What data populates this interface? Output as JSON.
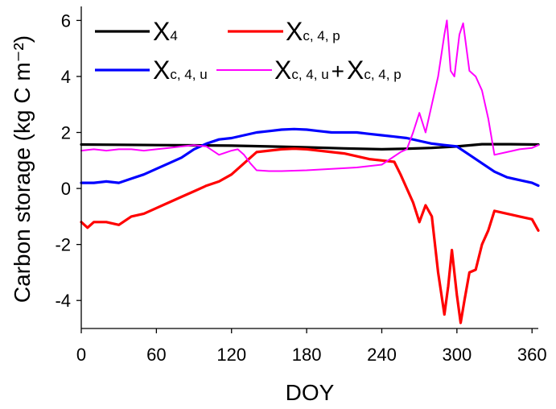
{
  "chart_data": {
    "type": "line",
    "xlabel": "DOY",
    "ylabel": "Carbon storage (kg C m⁻²)",
    "xlim": [
      0,
      365
    ],
    "ylim": [
      -5,
      6.5
    ],
    "xticks": [
      0,
      60,
      120,
      180,
      240,
      300,
      360
    ],
    "yticks": [
      -4,
      -2,
      0,
      2,
      4,
      6
    ],
    "grid": false,
    "legend_position": "top-left",
    "series": [
      {
        "name": "X4",
        "legend": {
          "main": "X",
          "sub": "4"
        },
        "color": "#000000",
        "x": [
          0,
          30,
          60,
          90,
          120,
          150,
          180,
          210,
          240,
          260,
          280,
          300,
          320,
          340,
          365
        ],
        "y": [
          1.57,
          1.56,
          1.55,
          1.54,
          1.53,
          1.5,
          1.47,
          1.43,
          1.4,
          1.42,
          1.45,
          1.5,
          1.58,
          1.58,
          1.57
        ]
      },
      {
        "name": "Xc,4,p",
        "legend": {
          "main": "X",
          "sub": "c, 4, p"
        },
        "color": "#ff0000",
        "x": [
          0,
          5,
          10,
          20,
          30,
          40,
          50,
          60,
          70,
          80,
          90,
          100,
          110,
          120,
          130,
          140,
          150,
          160,
          170,
          180,
          190,
          200,
          210,
          220,
          230,
          240,
          250,
          255,
          260,
          265,
          270,
          275,
          280,
          285,
          290,
          293,
          296,
          300,
          303,
          306,
          310,
          315,
          320,
          325,
          330,
          340,
          350,
          360,
          365
        ],
        "y": [
          -1.2,
          -1.4,
          -1.2,
          -1.2,
          -1.3,
          -1.0,
          -0.9,
          -0.7,
          -0.5,
          -0.3,
          -0.1,
          0.1,
          0.25,
          0.5,
          0.9,
          1.3,
          1.35,
          1.4,
          1.42,
          1.4,
          1.35,
          1.3,
          1.25,
          1.15,
          1.05,
          1.0,
          0.95,
          0.5,
          0.0,
          -0.5,
          -1.2,
          -0.6,
          -1.0,
          -3.0,
          -4.5,
          -3.5,
          -2.2,
          -3.8,
          -4.8,
          -4.0,
          -3.0,
          -2.9,
          -2.0,
          -1.5,
          -0.8,
          -0.9,
          -1.0,
          -1.1,
          -1.5
        ]
      },
      {
        "name": "Xc,4,u",
        "legend": {
          "main": "X",
          "sub": "c, 4, u"
        },
        "color": "#0000ff",
        "x": [
          0,
          10,
          20,
          30,
          40,
          50,
          60,
          70,
          80,
          90,
          100,
          110,
          120,
          130,
          140,
          150,
          160,
          170,
          180,
          190,
          200,
          210,
          220,
          230,
          240,
          250,
          260,
          270,
          280,
          290,
          300,
          310,
          320,
          330,
          340,
          350,
          360,
          365
        ],
        "y": [
          0.2,
          0.2,
          0.25,
          0.2,
          0.35,
          0.5,
          0.7,
          0.9,
          1.1,
          1.4,
          1.6,
          1.75,
          1.8,
          1.9,
          2.0,
          2.05,
          2.1,
          2.12,
          2.1,
          2.05,
          2.0,
          2.0,
          2.0,
          1.95,
          1.9,
          1.85,
          1.8,
          1.7,
          1.6,
          1.55,
          1.5,
          1.2,
          0.9,
          0.6,
          0.4,
          0.3,
          0.2,
          0.1
        ]
      },
      {
        "name": "Xc,4,u + Xc,4,p",
        "legend": {
          "main": "X",
          "sub": "c, 4, u",
          "plus": "+",
          "main2": "X",
          "sub2": "c, 4, p"
        },
        "color": "#ff00ff",
        "x": [
          0,
          10,
          20,
          30,
          40,
          50,
          60,
          70,
          80,
          90,
          100,
          110,
          120,
          125,
          130,
          135,
          140,
          150,
          160,
          180,
          200,
          220,
          240,
          255,
          260,
          265,
          270,
          275,
          280,
          285,
          290,
          292,
          295,
          298,
          302,
          305,
          310,
          315,
          320,
          325,
          330,
          340,
          350,
          360,
          365
        ],
        "y": [
          1.35,
          1.4,
          1.35,
          1.4,
          1.4,
          1.35,
          1.4,
          1.45,
          1.5,
          1.55,
          1.5,
          1.2,
          1.35,
          1.4,
          1.2,
          0.9,
          0.65,
          0.62,
          0.62,
          0.65,
          0.7,
          0.75,
          0.85,
          1.3,
          1.4,
          2.0,
          2.7,
          2.0,
          3.0,
          4.0,
          5.5,
          6.0,
          4.2,
          4.0,
          5.5,
          5.9,
          4.2,
          4.0,
          3.5,
          2.5,
          1.2,
          1.3,
          1.4,
          1.45,
          1.55
        ]
      }
    ]
  }
}
